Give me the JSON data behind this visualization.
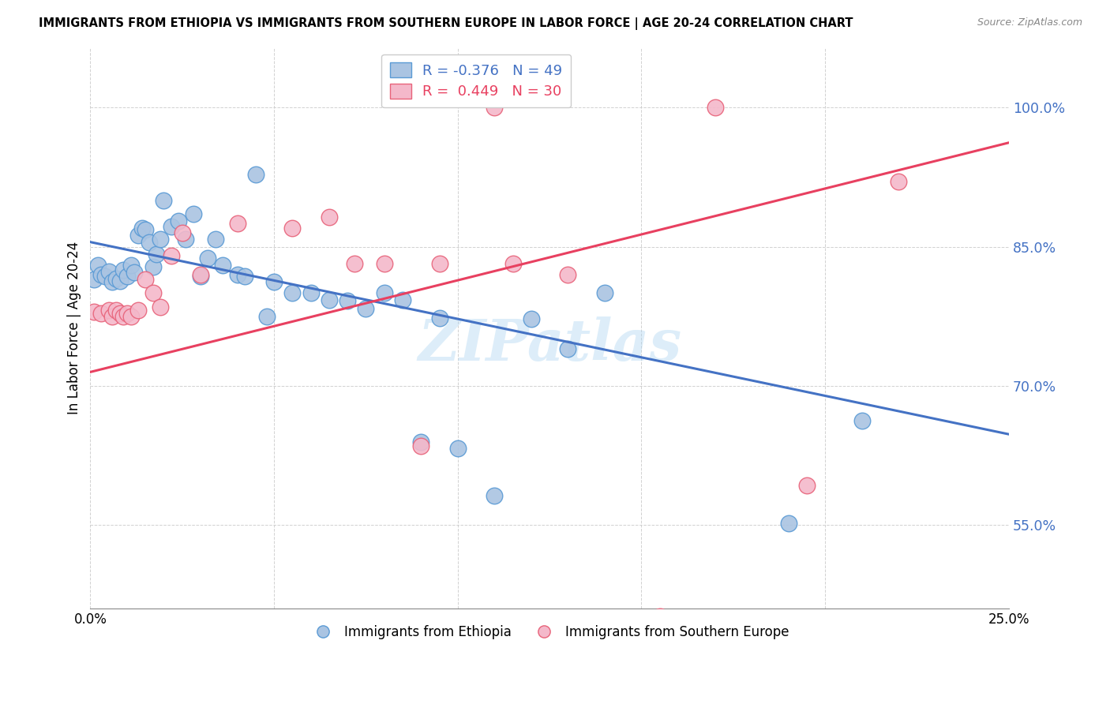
{
  "title": "IMMIGRANTS FROM ETHIOPIA VS IMMIGRANTS FROM SOUTHERN EUROPE IN LABOR FORCE | AGE 20-24 CORRELATION CHART",
  "source": "Source: ZipAtlas.com",
  "ylabel": "In Labor Force | Age 20-24",
  "xlim": [
    0.0,
    0.25
  ],
  "ylim": [
    0.46,
    1.065
  ],
  "yticks": [
    0.55,
    0.7,
    0.85,
    1.0
  ],
  "ytick_labels": [
    "55.0%",
    "70.0%",
    "85.0%",
    "100.0%"
  ],
  "xticks": [
    0.0,
    0.05,
    0.1,
    0.15,
    0.2,
    0.25
  ],
  "xtick_labels": [
    "0.0%",
    "",
    "",
    "",
    "",
    "25.0%"
  ],
  "blue_color": "#aac4e2",
  "blue_edge_color": "#5b9bd5",
  "pink_color": "#f4b8ca",
  "pink_edge_color": "#e8637a",
  "legend_R1": "R = -0.376",
  "legend_N1": "N = 49",
  "legend_R2": "R =  0.449",
  "legend_N2": "N = 30",
  "label1": "Immigrants from Ethiopia",
  "label2": "Immigrants from Southern Europe",
  "watermark": "ZIPatlas",
  "blue_line_color": "#4472c4",
  "pink_line_color": "#e84060",
  "blue_trend_x": [
    0.0,
    0.25
  ],
  "blue_trend_y": [
    0.855,
    0.648
  ],
  "pink_trend_x": [
    0.0,
    0.25
  ],
  "pink_trend_y": [
    0.715,
    0.962
  ],
  "blue_x": [
    0.001,
    0.002,
    0.003,
    0.004,
    0.005,
    0.006,
    0.007,
    0.008,
    0.009,
    0.01,
    0.011,
    0.012,
    0.013,
    0.014,
    0.015,
    0.016,
    0.017,
    0.018,
    0.019,
    0.02,
    0.022,
    0.024,
    0.026,
    0.028,
    0.03,
    0.032,
    0.034,
    0.036,
    0.04,
    0.042,
    0.045,
    0.048,
    0.05,
    0.055,
    0.06,
    0.065,
    0.07,
    0.075,
    0.08,
    0.085,
    0.09,
    0.095,
    0.1,
    0.11,
    0.12,
    0.13,
    0.14,
    0.19,
    0.21
  ],
  "blue_y": [
    0.815,
    0.83,
    0.82,
    0.818,
    0.823,
    0.812,
    0.816,
    0.813,
    0.825,
    0.818,
    0.83,
    0.822,
    0.862,
    0.87,
    0.868,
    0.855,
    0.828,
    0.842,
    0.858,
    0.9,
    0.872,
    0.878,
    0.858,
    0.885,
    0.818,
    0.838,
    0.858,
    0.83,
    0.82,
    0.818,
    0.928,
    0.775,
    0.812,
    0.8,
    0.8,
    0.793,
    0.792,
    0.783,
    0.8,
    0.793,
    0.64,
    0.773,
    0.633,
    0.582,
    0.772,
    0.74,
    0.8,
    0.552,
    0.663
  ],
  "pink_x": [
    0.001,
    0.003,
    0.005,
    0.006,
    0.007,
    0.008,
    0.009,
    0.01,
    0.011,
    0.013,
    0.015,
    0.017,
    0.019,
    0.022,
    0.025,
    0.03,
    0.04,
    0.055,
    0.065,
    0.072,
    0.08,
    0.09,
    0.095,
    0.11,
    0.115,
    0.13,
    0.155,
    0.17,
    0.195,
    0.22
  ],
  "pink_y": [
    0.78,
    0.778,
    0.782,
    0.775,
    0.782,
    0.778,
    0.775,
    0.778,
    0.775,
    0.782,
    0.815,
    0.8,
    0.785,
    0.84,
    0.865,
    0.82,
    0.875,
    0.87,
    0.882,
    0.832,
    0.832,
    0.635,
    0.832,
    1.0,
    0.832,
    0.82,
    0.452,
    1.0,
    0.593,
    0.92
  ]
}
